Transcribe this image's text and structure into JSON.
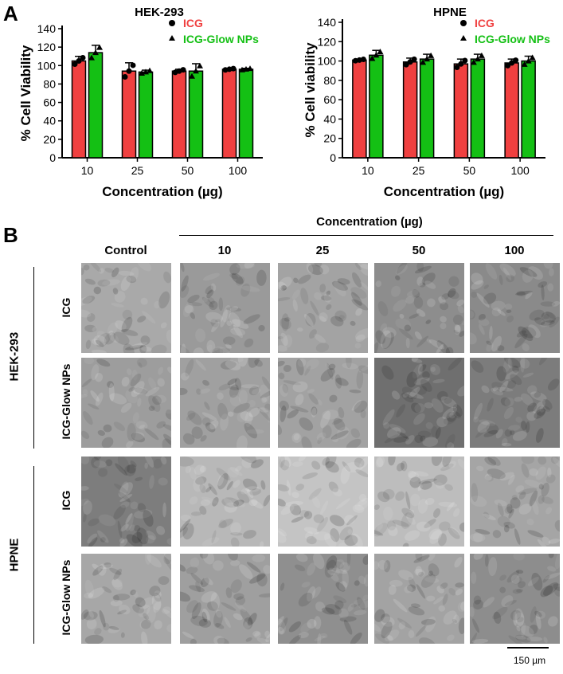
{
  "panel_labels": {
    "a": "A",
    "b": "B"
  },
  "colors": {
    "icg": "#f04040",
    "glow": "#14c014",
    "outline": "#000000"
  },
  "legend": {
    "icg": "ICG",
    "glow": "ICG-Glow NPs"
  },
  "chart_data": [
    {
      "type": "bar",
      "title": "HEK-293",
      "xlabel": "Concentration (µg)",
      "ylabel": "% Cell Viability",
      "categories": [
        "10",
        "25",
        "50",
        "100"
      ],
      "ylim": [
        0,
        140
      ],
      "yticks": [
        0,
        20,
        40,
        60,
        80,
        100,
        120,
        140
      ],
      "series": [
        {
          "name": "ICG",
          "values": [
            105,
            94,
            94,
            96
          ],
          "errors": [
            5,
            9,
            2,
            1
          ]
        },
        {
          "name": "ICG-Glow NPs",
          "values": [
            114,
            93,
            94,
            96
          ],
          "errors": [
            8,
            2,
            8,
            1
          ]
        }
      ]
    },
    {
      "type": "bar",
      "title": "HPNE",
      "xlabel": "Concentration (µg)",
      "ylabel": "% Cell viability",
      "categories": [
        "10",
        "25",
        "50",
        "100"
      ],
      "ylim": [
        0,
        140
      ],
      "yticks": [
        0,
        20,
        40,
        60,
        80,
        100,
        120,
        140
      ],
      "series": [
        {
          "name": "ICG",
          "values": [
            101,
            99,
            97,
            98
          ],
          "errors": [
            1,
            4,
            5,
            4
          ]
        },
        {
          "name": "ICG-Glow NPs",
          "values": [
            106,
            102,
            102,
            100
          ],
          "errors": [
            5,
            5,
            5,
            5
          ]
        }
      ]
    }
  ],
  "micrographs": {
    "conc_header": "Concentration (µg)",
    "columns": [
      "Control",
      "10",
      "25",
      "50",
      "100"
    ],
    "groups": [
      {
        "label": "HEK-293",
        "rows": [
          "ICG",
          "ICG-Glow NPs"
        ]
      },
      {
        "label": "HPNE",
        "rows": [
          "ICG",
          "ICG-Glow NPs"
        ]
      }
    ],
    "scale_bar": "150 µm"
  }
}
